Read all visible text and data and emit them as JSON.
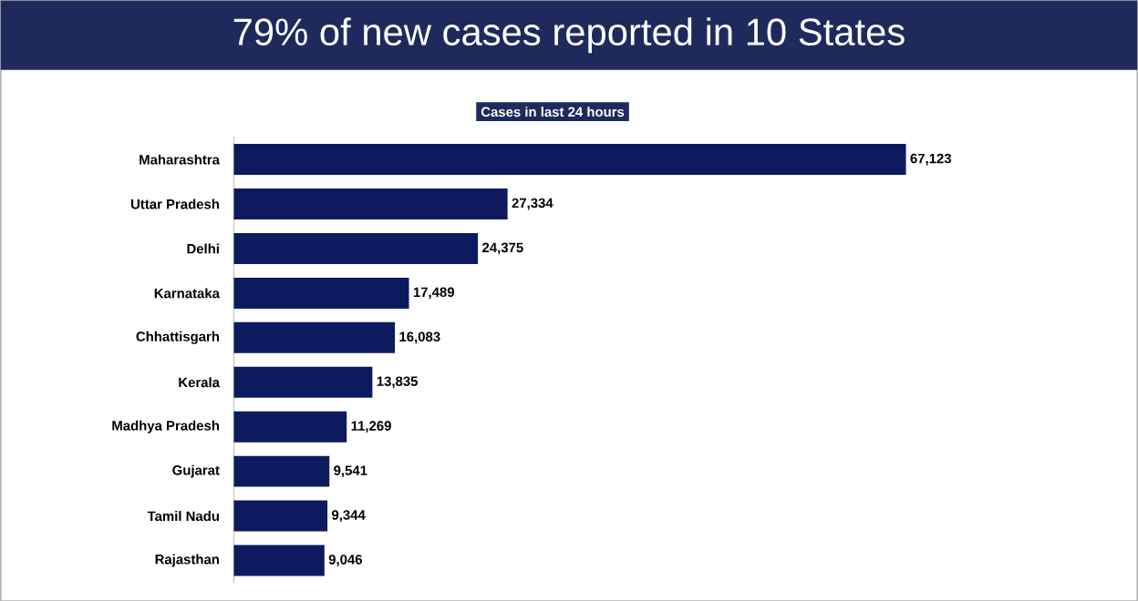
{
  "chart_data": {
    "type": "bar",
    "orientation": "horizontal",
    "title": "79% of new cases reported in 10 States",
    "subtitle": "Cases in last 24 hours",
    "categories": [
      "Maharashtra",
      "Uttar Pradesh",
      "Delhi",
      "Karnataka",
      "Chhattisgarh",
      "Kerala",
      "Madhya Pradesh",
      "Gujarat",
      "Tamil Nadu",
      "Rajasthan"
    ],
    "values": [
      67123,
      27334,
      24375,
      17489,
      16083,
      13835,
      11269,
      9541,
      9344,
      9046
    ],
    "value_labels": [
      "67,123",
      "27,334",
      "24,375",
      "17,489",
      "16,083",
      "13,835",
      "11,269",
      "9,541",
      "9,344",
      "9,046"
    ],
    "color": "#0d1b5e",
    "tick_labels": "y"
  }
}
